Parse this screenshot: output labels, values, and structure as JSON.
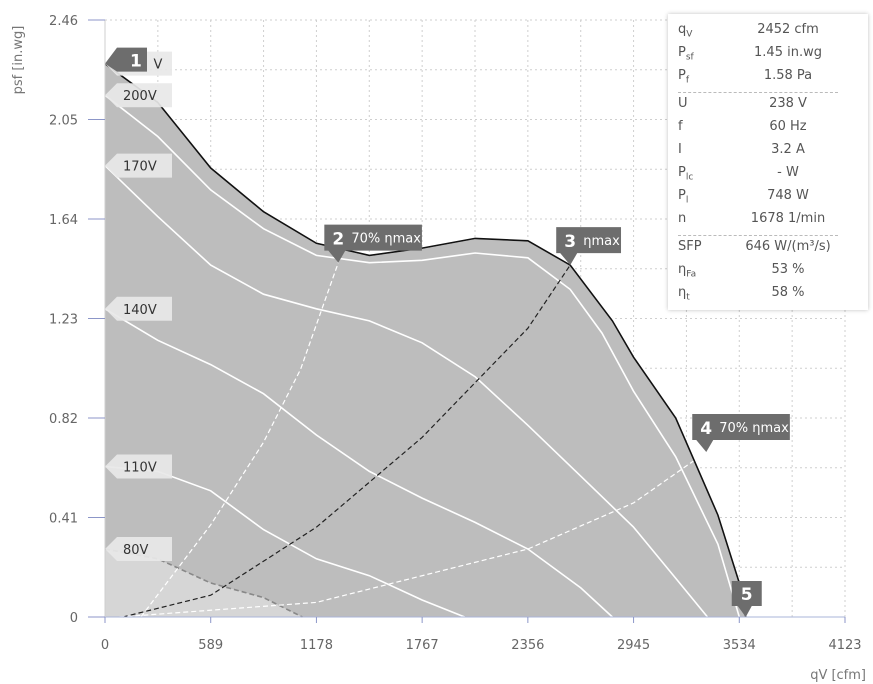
{
  "chart_data": {
    "type": "line",
    "xlabel": "qV [cfm]",
    "ylabel": "psf [in.wg]",
    "xlim": [
      0,
      4123
    ],
    "ylim": [
      0,
      2.46
    ],
    "x_ticks": [
      "0",
      "589",
      "1178",
      "1767",
      "2356",
      "2945",
      "3534",
      "4123"
    ],
    "y_ticks": [
      "0",
      "0.41",
      "0.82",
      "1.23",
      "1.64",
      "2.05",
      "2.46"
    ],
    "grid": true,
    "envelope": [
      [
        0,
        2.28
      ],
      [
        294,
        2.12
      ],
      [
        589,
        1.85
      ],
      [
        883,
        1.67
      ],
      [
        1178,
        1.54
      ],
      [
        1473,
        1.49
      ],
      [
        1767,
        1.52
      ],
      [
        2062,
        1.56
      ],
      [
        2356,
        1.55
      ],
      [
        2592,
        1.45
      ],
      [
        2827,
        1.22
      ],
      [
        2945,
        1.07
      ],
      [
        3180,
        0.82
      ],
      [
        3415,
        0.42
      ],
      [
        3534,
        0.14
      ],
      [
        3570,
        0.0
      ]
    ],
    "series": [
      {
        "name": "230V",
        "points": [
          [
            0,
            2.28
          ],
          [
            294,
            2.12
          ],
          [
            589,
            1.85
          ],
          [
            883,
            1.67
          ],
          [
            1178,
            1.54
          ],
          [
            1473,
            1.49
          ],
          [
            1767,
            1.52
          ],
          [
            2062,
            1.56
          ],
          [
            2356,
            1.55
          ],
          [
            2592,
            1.45
          ],
          [
            2827,
            1.22
          ],
          [
            2945,
            1.07
          ],
          [
            3180,
            0.82
          ],
          [
            3415,
            0.42
          ],
          [
            3534,
            0.14
          ],
          [
            3570,
            0.0
          ]
        ]
      },
      {
        "name": "200V",
        "points": [
          [
            0,
            2.15
          ],
          [
            294,
            1.98
          ],
          [
            589,
            1.76
          ],
          [
            883,
            1.6
          ],
          [
            1178,
            1.49
          ],
          [
            1473,
            1.46
          ],
          [
            1767,
            1.47
          ],
          [
            2062,
            1.5
          ],
          [
            2356,
            1.48
          ],
          [
            2592,
            1.35
          ],
          [
            2769,
            1.17
          ],
          [
            2945,
            0.93
          ],
          [
            3180,
            0.66
          ],
          [
            3415,
            0.3
          ],
          [
            3534,
            0.0
          ]
        ]
      },
      {
        "name": "170V",
        "points": [
          [
            0,
            1.86
          ],
          [
            294,
            1.65
          ],
          [
            589,
            1.45
          ],
          [
            883,
            1.33
          ],
          [
            1178,
            1.27
          ],
          [
            1473,
            1.22
          ],
          [
            1767,
            1.13
          ],
          [
            2062,
            0.99
          ],
          [
            2356,
            0.79
          ],
          [
            2651,
            0.58
          ],
          [
            2945,
            0.37
          ],
          [
            3180,
            0.16
          ],
          [
            3357,
            0.0
          ]
        ]
      },
      {
        "name": "140V",
        "points": [
          [
            0,
            1.27
          ],
          [
            294,
            1.14
          ],
          [
            589,
            1.04
          ],
          [
            883,
            0.92
          ],
          [
            1178,
            0.75
          ],
          [
            1473,
            0.6
          ],
          [
            1767,
            0.49
          ],
          [
            2062,
            0.39
          ],
          [
            2356,
            0.28
          ],
          [
            2651,
            0.12
          ],
          [
            2827,
            0.0
          ]
        ]
      },
      {
        "name": "110V",
        "points": [
          [
            0,
            0.62
          ],
          [
            294,
            0.6
          ],
          [
            589,
            0.52
          ],
          [
            883,
            0.36
          ],
          [
            1178,
            0.24
          ],
          [
            1473,
            0.17
          ],
          [
            1767,
            0.07
          ],
          [
            2004,
            0.0
          ]
        ]
      },
      {
        "name": "80V",
        "points": [
          [
            0,
            0.28
          ],
          [
            294,
            0.24
          ],
          [
            589,
            0.14
          ],
          [
            883,
            0.08
          ],
          [
            1100,
            0.0
          ]
        ]
      }
    ],
    "efficiency_lines": [
      {
        "label": "70% ηmax",
        "color": "#ffffff",
        "points": [
          [
            200,
            0.0
          ],
          [
            589,
            0.38
          ],
          [
            883,
            0.72
          ],
          [
            1089,
            1.02
          ],
          [
            1300,
            1.46
          ]
        ]
      },
      {
        "label": "ηmax",
        "color": "#222222",
        "points": [
          [
            100,
            0.0
          ],
          [
            589,
            0.09
          ],
          [
            1178,
            0.37
          ],
          [
            1767,
            0.74
          ],
          [
            2356,
            1.19
          ],
          [
            2592,
            1.45
          ]
        ]
      },
      {
        "label": "70% ηmax",
        "color": "#ffffff",
        "points": [
          [
            80,
            0.0
          ],
          [
            1178,
            0.06
          ],
          [
            2356,
            0.28
          ],
          [
            2945,
            0.47
          ],
          [
            3350,
            0.68
          ]
        ]
      }
    ],
    "markers": [
      {
        "number": "1",
        "label": "",
        "x": 0,
        "y": 2.28
      },
      {
        "number": "2",
        "label": "70% ηmax",
        "x": 1300,
        "y": 1.46
      },
      {
        "number": "3",
        "label": "ηmax",
        "x": 2592,
        "y": 1.45
      },
      {
        "number": "4",
        "label": "70% ηmax",
        "x": 3350,
        "y": 0.68
      },
      {
        "number": "5",
        "label": "",
        "x": 3570,
        "y": 0.0
      }
    ],
    "voltage_tags": [
      {
        "text": "V",
        "y": 2.28,
        "covered": true
      },
      {
        "text": "200V",
        "y": 2.15
      },
      {
        "text": "170V",
        "y": 1.86
      },
      {
        "text": "140V",
        "y": 1.27
      },
      {
        "text": "110V",
        "y": 0.62
      },
      {
        "text": "80V",
        "y": 0.28
      }
    ]
  },
  "info": {
    "block1": [
      {
        "sym": "q",
        "sub": "V",
        "val": "2452 cfm"
      },
      {
        "sym": "P",
        "sub": "sf",
        "val": "1.45 in.wg"
      },
      {
        "sym": "P",
        "sub": "f",
        "val": "1.58 Pa"
      }
    ],
    "block2": [
      {
        "sym": "U",
        "sub": "",
        "val": "238 V"
      },
      {
        "sym": "f",
        "sub": "",
        "val": "60 Hz"
      },
      {
        "sym": "I",
        "sub": "",
        "val": "3.2 A"
      },
      {
        "sym": "P",
        "sub": "lc",
        "val": "- W"
      },
      {
        "sym": "P",
        "sub": "l",
        "val": "748 W"
      },
      {
        "sym": "n",
        "sub": "",
        "val": "1678 1/min"
      }
    ],
    "block3": [
      {
        "sym": "SFP",
        "sub": "",
        "val": "646 W/(m³/s)"
      },
      {
        "sym": "η",
        "sub": "Fa",
        "val": "53 %"
      },
      {
        "sym": "η",
        "sub": "t",
        "val": "58 %"
      }
    ]
  },
  "colors": {
    "fill": "#bdbdbd",
    "fill_low": "#d6d6d6",
    "envelope": "#111111",
    "grid": "#cfcfcf"
  }
}
